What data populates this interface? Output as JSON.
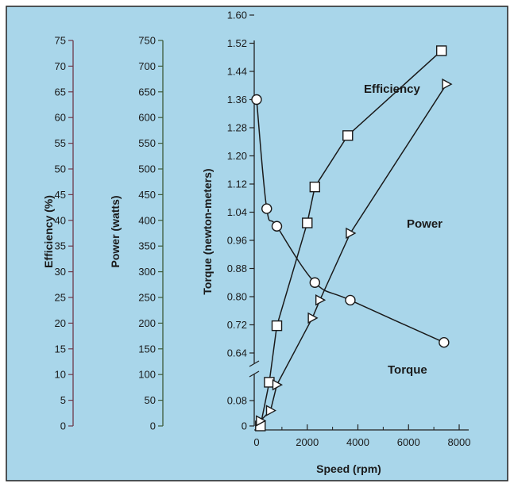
{
  "chart_data": {
    "type": "line",
    "xlabel": "Speed (rpm)",
    "x_ticks": [
      "0",
      "2000",
      "4000",
      "6000",
      "8000"
    ],
    "xlim": [
      0,
      8000
    ],
    "axes": [
      {
        "id": "efficiency",
        "label": "Efficiency (%)",
        "ticks": [
          "0",
          "5",
          "10",
          "15",
          "20",
          "25",
          "30",
          "35",
          "40",
          "45",
          "50",
          "55",
          "60",
          "65",
          "70",
          "75"
        ],
        "range": [
          0,
          75
        ]
      },
      {
        "id": "power",
        "label": "Power (watts)",
        "ticks": [
          "0",
          "50",
          "100",
          "150",
          "200",
          "250",
          "300",
          "350",
          "400",
          "450",
          "500",
          "550",
          "600",
          "650",
          "700",
          "750"
        ],
        "range": [
          0,
          750
        ]
      },
      {
        "id": "torque",
        "label": "Torque (newton-meters)",
        "ticks": [
          "0",
          "0.08",
          "0.64",
          "0.72",
          "0.80",
          "0.88",
          "0.96",
          "1.04",
          "1.12",
          "1.20",
          "1.28",
          "1.36",
          "1.44",
          "1.52",
          "1.60"
        ],
        "range": [
          0,
          1.6
        ],
        "axis_break": [
          0.12,
          0.6
        ]
      }
    ],
    "series": [
      {
        "name": "Efficiency",
        "axis": "efficiency",
        "marker": "square",
        "x": [
          150,
          500,
          800,
          2000,
          2300,
          3600,
          7300
        ],
        "y": [
          0,
          8.5,
          19.5,
          39.5,
          46.5,
          56.5,
          73
        ]
      },
      {
        "name": "Power",
        "axis": "power",
        "marker": "triangle",
        "x": [
          150,
          550,
          800,
          2200,
          2500,
          3700,
          7500
        ],
        "y": [
          10,
          30,
          80,
          210,
          245,
          375,
          665
        ]
      },
      {
        "name": "Torque",
        "axis": "torque",
        "marker": "circle",
        "x": [
          0,
          400,
          800,
          2300,
          3700,
          7400
        ],
        "y": [
          1.36,
          1.05,
          1.0,
          0.84,
          0.79,
          0.67
        ]
      }
    ],
    "grid": false,
    "legend": "none"
  }
}
